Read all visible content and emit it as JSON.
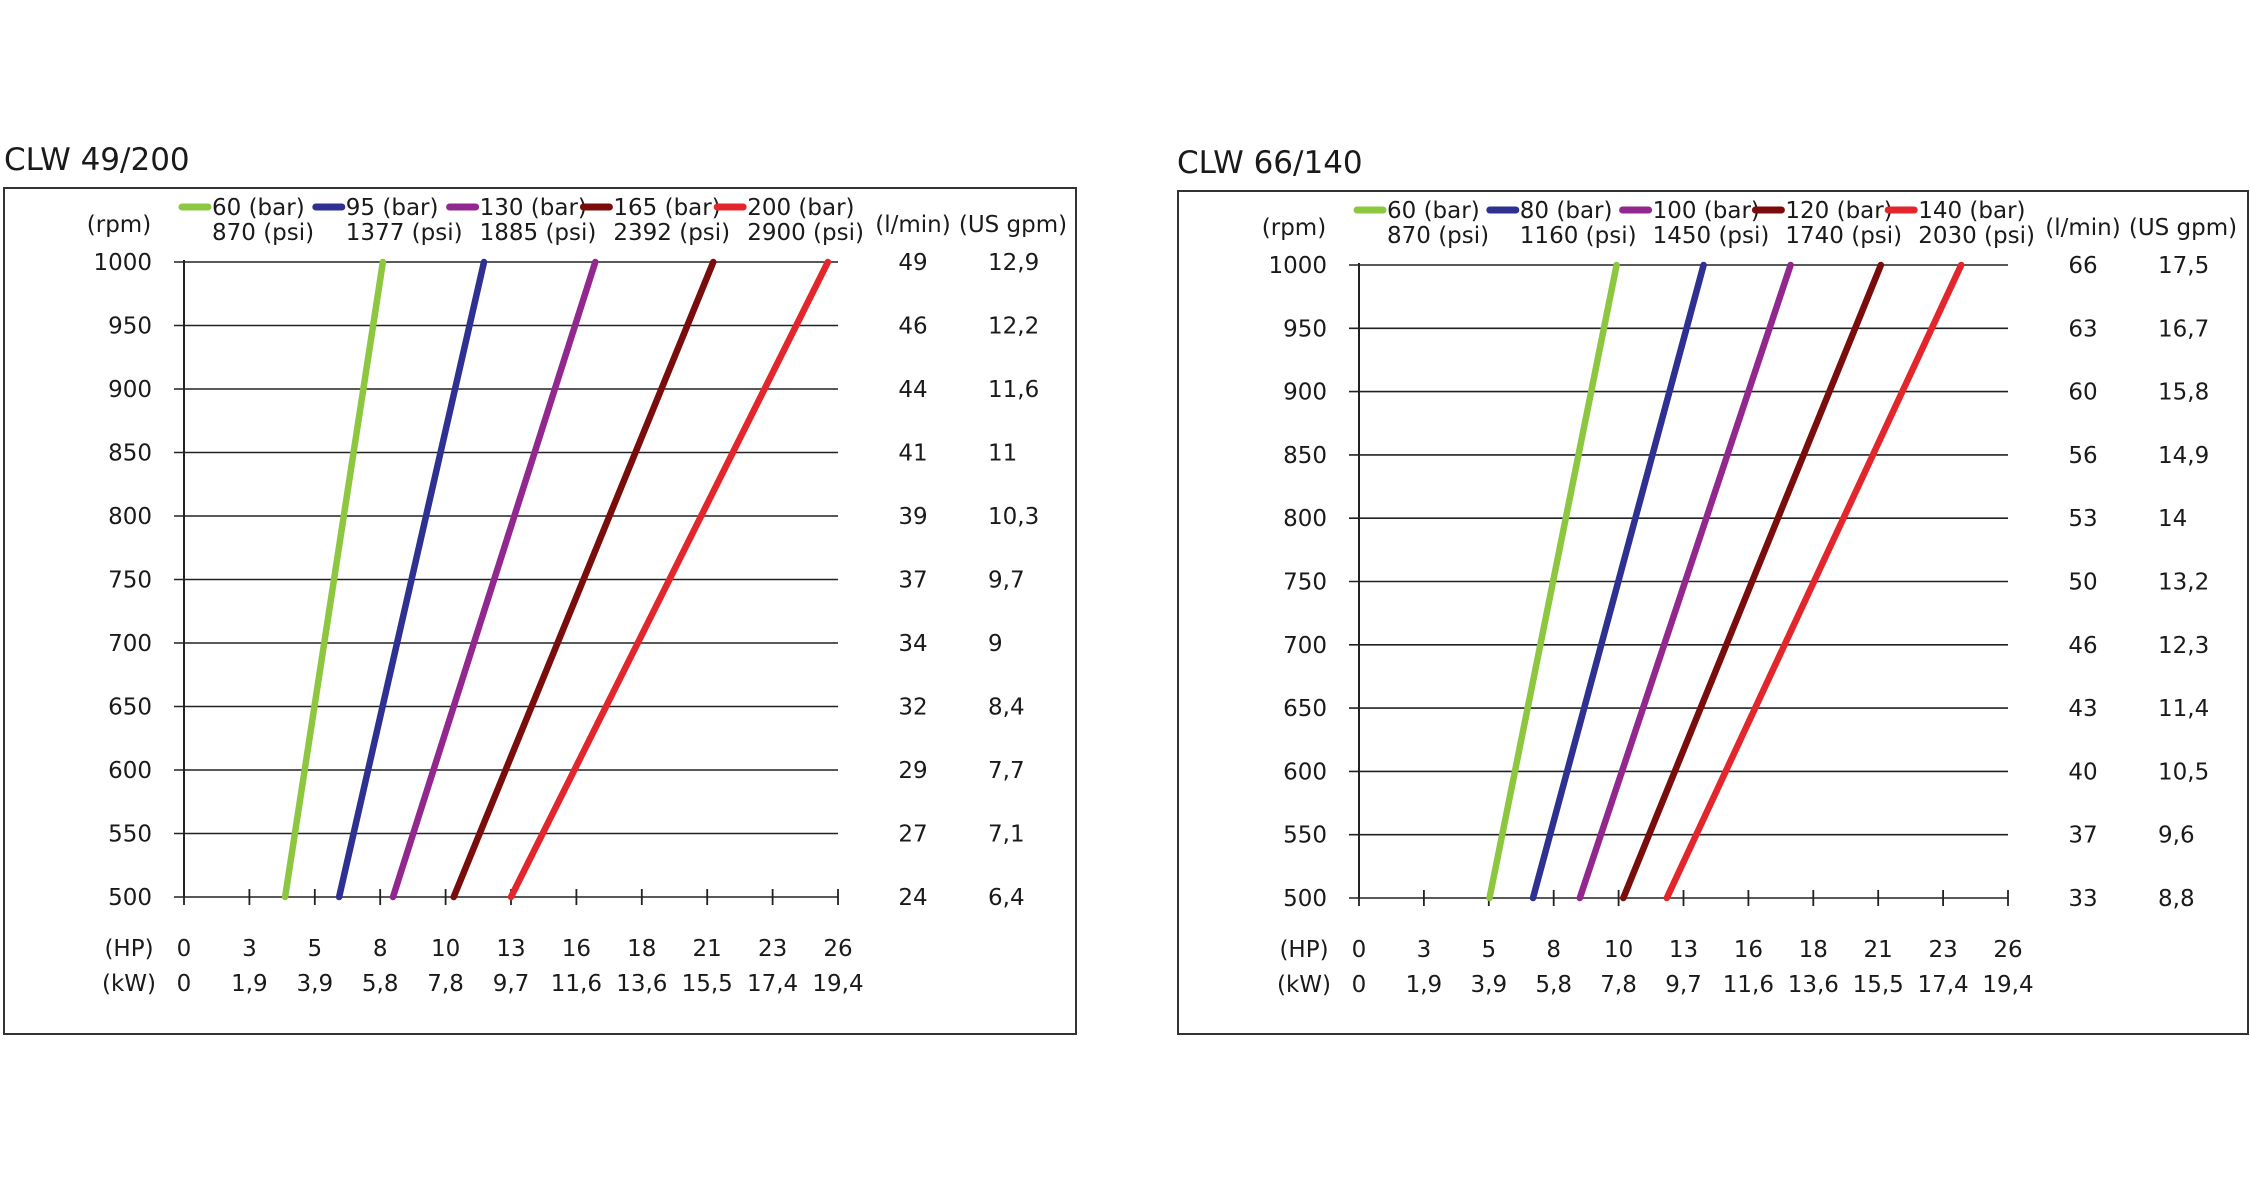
{
  "chart_data": [
    {
      "type": "line",
      "title": "CLW 49/200",
      "y_unit_left": "(rpm)",
      "y_ticks": [
        "1000",
        "950",
        "900",
        "850",
        "800",
        "750",
        "700",
        "650",
        "600",
        "550",
        "500"
      ],
      "ylim": [
        500,
        1000
      ],
      "flow_header": "(l/min)",
      "flow_values": [
        "49",
        "46",
        "44",
        "41",
        "39",
        "37",
        "34",
        "32",
        "29",
        "27",
        "24"
      ],
      "gpm_header": "(US gpm)",
      "gpm_values": [
        "12,9",
        "12,2",
        "11,6",
        "11",
        "10,3",
        "9,7",
        "9",
        "8,4",
        "7,7",
        "7,1",
        "6,4"
      ],
      "x_unit_hp": "(HP)",
      "hp_ticks": [
        "0",
        "3",
        "5",
        "8",
        "10",
        "13",
        "16",
        "18",
        "21",
        "23",
        "26"
      ],
      "x_unit_kw": "(kW)",
      "kw_ticks": [
        "0",
        "1,9",
        "3,9",
        "5,8",
        "7,8",
        "9,7",
        "11,6",
        "13,6",
        "15,5",
        "17,4",
        "19,4"
      ],
      "xlim_kw": [
        0,
        19.4
      ],
      "grid": true,
      "legend_position": "top",
      "series": [
        {
          "name": "60 (bar)",
          "name2": "870 (psi)",
          "color": "#8dc63f",
          "points": [
            [
              3.0,
              500
            ],
            [
              5.9,
              1000
            ]
          ]
        },
        {
          "name": "95 (bar)",
          "name2": "1377 (psi)",
          "color": "#2e3192",
          "points": [
            [
              4.6,
              500
            ],
            [
              8.9,
              1000
            ]
          ]
        },
        {
          "name": "130 (bar)",
          "name2": "1885 (psi)",
          "color": "#92278f",
          "points": [
            [
              6.2,
              500
            ],
            [
              12.2,
              1000
            ]
          ]
        },
        {
          "name": "165 (bar)",
          "name2": "2392 (psi)",
          "color": "#7a0c0c",
          "points": [
            [
              8.0,
              500
            ],
            [
              15.7,
              1000
            ]
          ]
        },
        {
          "name": "200 (bar)",
          "name2": "2900 (psi)",
          "color": "#e3262b",
          "points": [
            [
              9.7,
              500
            ],
            [
              19.1,
              1000
            ]
          ]
        }
      ]
    },
    {
      "type": "line",
      "title": "CLW 66/140",
      "y_unit_left": "(rpm)",
      "y_ticks": [
        "1000",
        "950",
        "900",
        "850",
        "800",
        "750",
        "700",
        "650",
        "600",
        "550",
        "500"
      ],
      "ylim": [
        500,
        1000
      ],
      "flow_header": "(l/min)",
      "flow_values": [
        "66",
        "63",
        "60",
        "56",
        "53",
        "50",
        "46",
        "43",
        "40",
        "37",
        "33"
      ],
      "gpm_header": "(US gpm)",
      "gpm_values": [
        "17,5",
        "16,7",
        "15,8",
        "14,9",
        "14",
        "13,2",
        "12,3",
        "11,4",
        "10,5",
        "9,6",
        "8,8"
      ],
      "x_unit_hp": "(HP)",
      "hp_ticks": [
        "0",
        "3",
        "5",
        "8",
        "10",
        "13",
        "16",
        "18",
        "21",
        "23",
        "26"
      ],
      "x_unit_kw": "(kW)",
      "kw_ticks": [
        "0",
        "1,9",
        "3,9",
        "5,8",
        "7,8",
        "9,7",
        "11,6",
        "13,6",
        "15,5",
        "17,4",
        "19,4"
      ],
      "xlim_kw": [
        0,
        19.4
      ],
      "grid": true,
      "legend_position": "top",
      "series": [
        {
          "name": "60 (bar)",
          "name2": "870 (psi)",
          "color": "#8dc63f",
          "points": [
            [
              3.9,
              500
            ],
            [
              7.7,
              1000
            ]
          ]
        },
        {
          "name": "80 (bar)",
          "name2": "1160 (psi)",
          "color": "#2e3192",
          "points": [
            [
              5.2,
              500
            ],
            [
              10.3,
              1000
            ]
          ]
        },
        {
          "name": "100 (bar)",
          "name2": "1450 (psi)",
          "color": "#92278f",
          "points": [
            [
              6.6,
              500
            ],
            [
              12.9,
              1000
            ]
          ]
        },
        {
          "name": "120 (bar)",
          "name2": "1740 (psi)",
          "color": "#7a0c0c",
          "points": [
            [
              7.9,
              500
            ],
            [
              15.6,
              1000
            ]
          ]
        },
        {
          "name": "140 (bar)",
          "name2": "2030 (psi)",
          "color": "#e3262b",
          "points": [
            [
              9.2,
              500
            ],
            [
              18.0,
              1000
            ]
          ]
        }
      ]
    }
  ]
}
